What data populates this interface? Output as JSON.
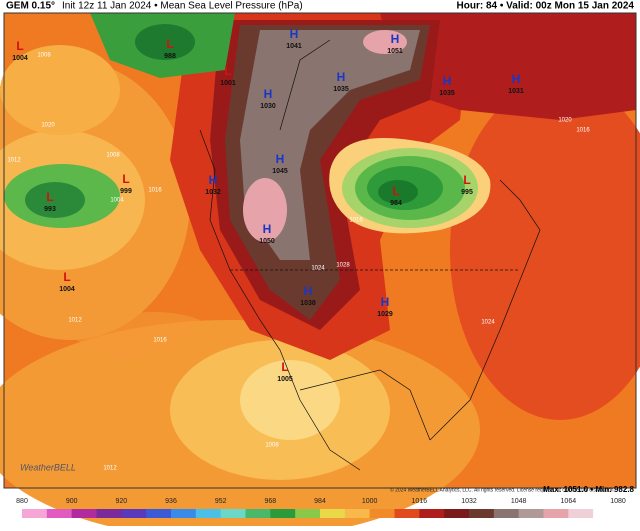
{
  "header": {
    "model": "GEM 0.15°",
    "title": "Init 12z 11 Jan 2024 • Mean Sea Level Pressure (hPa)",
    "valid": "Hour: 84 • Valid: 00z Mon 15 Jan 2024"
  },
  "centers": [
    {
      "type": "L",
      "value": "1004"
    },
    {
      "type": "L",
      "value": "988"
    },
    {
      "type": "L",
      "value": "1001"
    },
    {
      "type": "H",
      "value": "1041"
    },
    {
      "type": "H",
      "value": "1051"
    },
    {
      "type": "H",
      "value": "1035"
    },
    {
      "type": "H",
      "value": "1030"
    },
    {
      "type": "H",
      "value": "1035"
    },
    {
      "type": "H",
      "value": "1031"
    },
    {
      "type": "L",
      "value": "999"
    },
    {
      "type": "L",
      "value": "993"
    },
    {
      "type": "H",
      "value": "1032"
    },
    {
      "type": "H",
      "value": "1045"
    },
    {
      "type": "H",
      "value": "1050"
    },
    {
      "type": "L",
      "value": "984"
    },
    {
      "type": "L",
      "value": "995"
    },
    {
      "type": "L",
      "value": "1004"
    },
    {
      "type": "H",
      "value": "1038"
    },
    {
      "type": "H",
      "value": "1029"
    },
    {
      "type": "L",
      "value": "1005"
    }
  ],
  "contour_labels": [
    "1008",
    "1020",
    "1012",
    "1008",
    "1004",
    "1016",
    "1012",
    "1016",
    "1024",
    "1016",
    "1020",
    "1012",
    "1008",
    "1028",
    "1024",
    "1016"
  ],
  "footer": {
    "copyright": "© 2024 WeatherBELL Analytics, LLC. All rights reserved. License required for commercial distribution.",
    "max_min": "Max: 1051.0 • Min: 982.8",
    "logo": "WeatherBELL"
  },
  "colorbar": {
    "labels": [
      "880",
      "900",
      "920",
      "936",
      "952",
      "968",
      "984",
      "1000",
      "1016",
      "1032",
      "1048",
      "1064",
      "1080"
    ]
  }
}
